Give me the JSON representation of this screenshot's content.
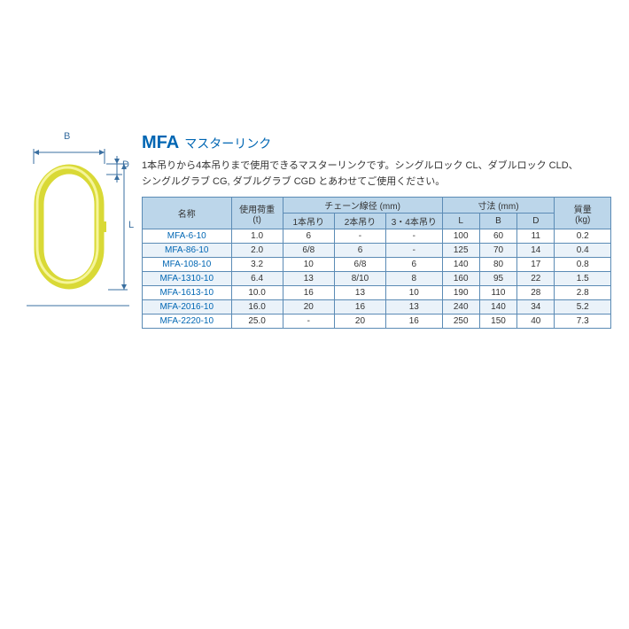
{
  "title": {
    "code": "MFA",
    "jp": "マスターリンク"
  },
  "description": [
    "1本吊りから4本吊りまで使用できるマスターリンクです。シングルロック CL、ダブルロック CLD、",
    "シングルグラブ CG, ダブルグラブ CGD とあわせてご使用ください。"
  ],
  "diagram": {
    "labels": {
      "B": "B",
      "D": "D",
      "L": "L"
    },
    "ring_color": "#d9d936",
    "highlight_color": "#f5f59a",
    "arrow_color": "#3a6fa0"
  },
  "table": {
    "header": {
      "name": "名称",
      "load": "使用荷重\n(t)",
      "chain_group": "チェーン線径 (mm)",
      "chain_cols": [
        "1本吊り",
        "2本吊り",
        "3・4本吊り"
      ],
      "dim_group": "寸法 (mm)",
      "dim_cols": [
        "L",
        "B",
        "D"
      ],
      "mass": "質量\n(kg)"
    },
    "rows": [
      {
        "name": "MFA-6-10",
        "load": "1.0",
        "c": [
          "6",
          "-",
          "-"
        ],
        "d": [
          "100",
          "60",
          "11"
        ],
        "m": "0.2"
      },
      {
        "name": "MFA-86-10",
        "load": "2.0",
        "c": [
          "6/8",
          "6",
          "-"
        ],
        "d": [
          "125",
          "70",
          "14"
        ],
        "m": "0.4"
      },
      {
        "name": "MFA-108-10",
        "load": "3.2",
        "c": [
          "10",
          "6/8",
          "6"
        ],
        "d": [
          "140",
          "80",
          "17"
        ],
        "m": "0.8"
      },
      {
        "name": "MFA-1310-10",
        "load": "6.4",
        "c": [
          "13",
          "8/10",
          "8"
        ],
        "d": [
          "160",
          "95",
          "22"
        ],
        "m": "1.5"
      },
      {
        "name": "MFA-1613-10",
        "load": "10.0",
        "c": [
          "16",
          "13",
          "10"
        ],
        "d": [
          "190",
          "110",
          "28"
        ],
        "m": "2.8"
      },
      {
        "name": "MFA-2016-10",
        "load": "16.0",
        "c": [
          "20",
          "16",
          "13"
        ],
        "d": [
          "240",
          "140",
          "34"
        ],
        "m": "5.2"
      },
      {
        "name": "MFA-2220-10",
        "load": "25.0",
        "c": [
          "-",
          "20",
          "16"
        ],
        "d": [
          "250",
          "150",
          "40"
        ],
        "m": "7.3"
      }
    ],
    "col_widths_pct": [
      19,
      11,
      11,
      11,
      12,
      8,
      8,
      8,
      12
    ]
  },
  "colors": {
    "accent": "#0066b3",
    "border": "#5b8bb5",
    "header_bg": "#bcd6ea",
    "row_alt_bg": "#eaf2f9"
  }
}
